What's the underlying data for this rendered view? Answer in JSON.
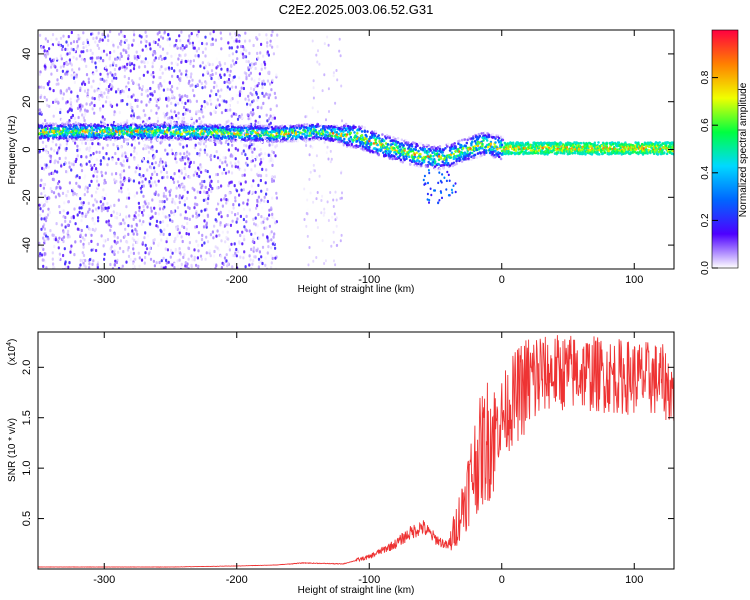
{
  "figure_title": "C2E2.2025.003.06.52.G31",
  "chart_data": [
    {
      "type": "heatmap",
      "title": "",
      "xlabel": "Height of straight line (km)",
      "ylabel": "Frequency (Hz)",
      "xlim": [
        -350,
        130
      ],
      "ylim": [
        -50,
        50
      ],
      "xticks": [
        -300,
        -200,
        -100,
        0,
        100
      ],
      "yticks": [
        -40,
        -20,
        0,
        20,
        40
      ],
      "colorbar": {
        "label": "Normalized spectral amplitude",
        "range": [
          0,
          1
        ],
        "ticks": [
          "0.0",
          "0.2",
          "0.4",
          "0.6",
          "0.8"
        ],
        "stops": [
          "#ffffff",
          "#4d00ff",
          "#0066ff",
          "#00d9ff",
          "#00ff40",
          "#f0ff00",
          "#ff8000",
          "#ff0040"
        ]
      },
      "ridge": {
        "description_points": [
          {
            "x": -350,
            "y": 8
          },
          {
            "x": -250,
            "y": 8
          },
          {
            "x": -170,
            "y": 7
          },
          {
            "x": -140,
            "y": 8
          },
          {
            "x": -110,
            "y": 6
          },
          {
            "x": -90,
            "y": 2
          },
          {
            "x": -70,
            "y": -1
          },
          {
            "x": -50,
            "y": -3
          },
          {
            "x": -40,
            "y": -2
          },
          {
            "x": -30,
            "y": 0
          },
          {
            "x": -15,
            "y": 3
          },
          {
            "x": 0,
            "y": 1
          },
          {
            "x": 50,
            "y": 1
          },
          {
            "x": 130,
            "y": 1
          }
        ]
      }
    },
    {
      "type": "line",
      "title": "",
      "xlabel": "Height of straight line (km)",
      "ylabel": "SNR (10 * v/v)",
      "y_multiplier": "(x10",
      "y_multiplier_exp": "4",
      "xlim": [
        -350,
        130
      ],
      "ylim": [
        0,
        2.35
      ],
      "xticks": [
        -300,
        -200,
        -100,
        0,
        100
      ],
      "yticks": [
        "0.5",
        "1.0",
        "1.5",
        "2.0"
      ],
      "series": [
        {
          "color": "#ee3333",
          "x": [
            -350,
            -300,
            -250,
            -200,
            -170,
            -150,
            -120,
            -100,
            -80,
            -70,
            -60,
            -50,
            -40,
            -30,
            -20,
            -10,
            0,
            10,
            20,
            30,
            40,
            60,
            80,
            100,
            120,
            130
          ],
          "y": [
            0.02,
            0.02,
            0.02,
            0.03,
            0.04,
            0.06,
            0.05,
            0.12,
            0.25,
            0.35,
            0.42,
            0.3,
            0.22,
            0.6,
            1.05,
            1.3,
            1.5,
            1.7,
            1.85,
            1.92,
            1.95,
            1.95,
            1.92,
            1.9,
            1.88,
            1.75
          ]
        }
      ]
    }
  ]
}
